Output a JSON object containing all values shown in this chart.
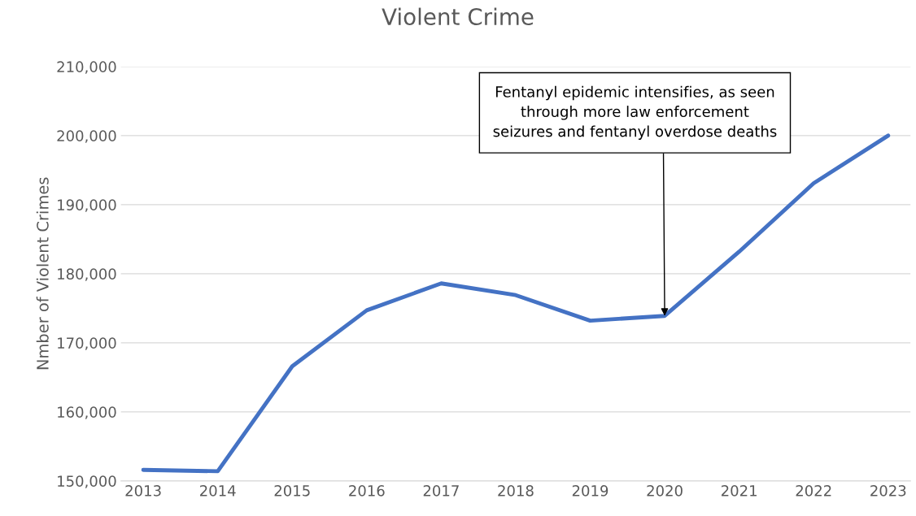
{
  "chart_data": {
    "type": "line",
    "title": "Violent Crime",
    "ylabel": "Nmber of Violent Crimes",
    "categories": [
      "2013",
      "2014",
      "2015",
      "2016",
      "2017",
      "2018",
      "2019",
      "2020",
      "2021",
      "2022",
      "2023"
    ],
    "series": [
      {
        "color": "#4472c4",
        "values": [
          151600,
          151400,
          166600,
          174700,
          178600,
          176900,
          173200,
          173900,
          183200,
          193100,
          200000
        ]
      }
    ],
    "ylim": [
      150000,
      210000
    ],
    "yticks": [
      {
        "value": 150000,
        "label": "150,000"
      },
      {
        "value": 160000,
        "label": "160,000"
      },
      {
        "value": 170000,
        "label": "170,000"
      },
      {
        "value": 180000,
        "label": "180,000"
      },
      {
        "value": 190000,
        "label": "190,000"
      },
      {
        "value": 200000,
        "label": "200,000"
      },
      {
        "value": 210000,
        "label": "210,000"
      }
    ],
    "grid": "y",
    "marker": "none",
    "line_style": "solid",
    "annotations": [
      {
        "text": "Fentanyl epidemic intensifies, as seen\nthrough more law enforcement\nseizures and fentanyl overdose deaths",
        "x": "2020",
        "y": 173900
      }
    ]
  }
}
